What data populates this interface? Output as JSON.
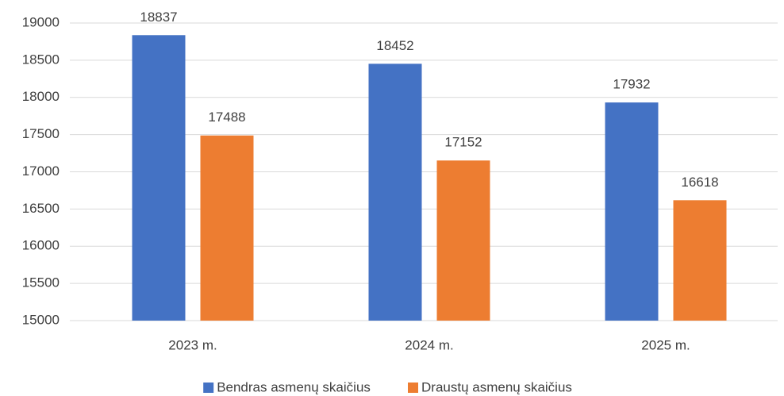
{
  "chart_data": {
    "type": "bar",
    "categories": [
      "2023 m.",
      "2024 m.",
      "2025 m."
    ],
    "series": [
      {
        "name": "Bendras asmenų skaičius",
        "color": "#4472c4",
        "values": [
          18837,
          18452,
          17932
        ]
      },
      {
        "name": "Draustų asmenų skaičius",
        "color": "#ed7d31",
        "values": [
          17488,
          17152,
          16618
        ]
      }
    ],
    "ylim": [
      15000,
      19000
    ],
    "yticks": [
      15000,
      15500,
      16000,
      16500,
      17000,
      17500,
      18000,
      18500,
      19000
    ],
    "grid": true,
    "legend": "bottom"
  }
}
